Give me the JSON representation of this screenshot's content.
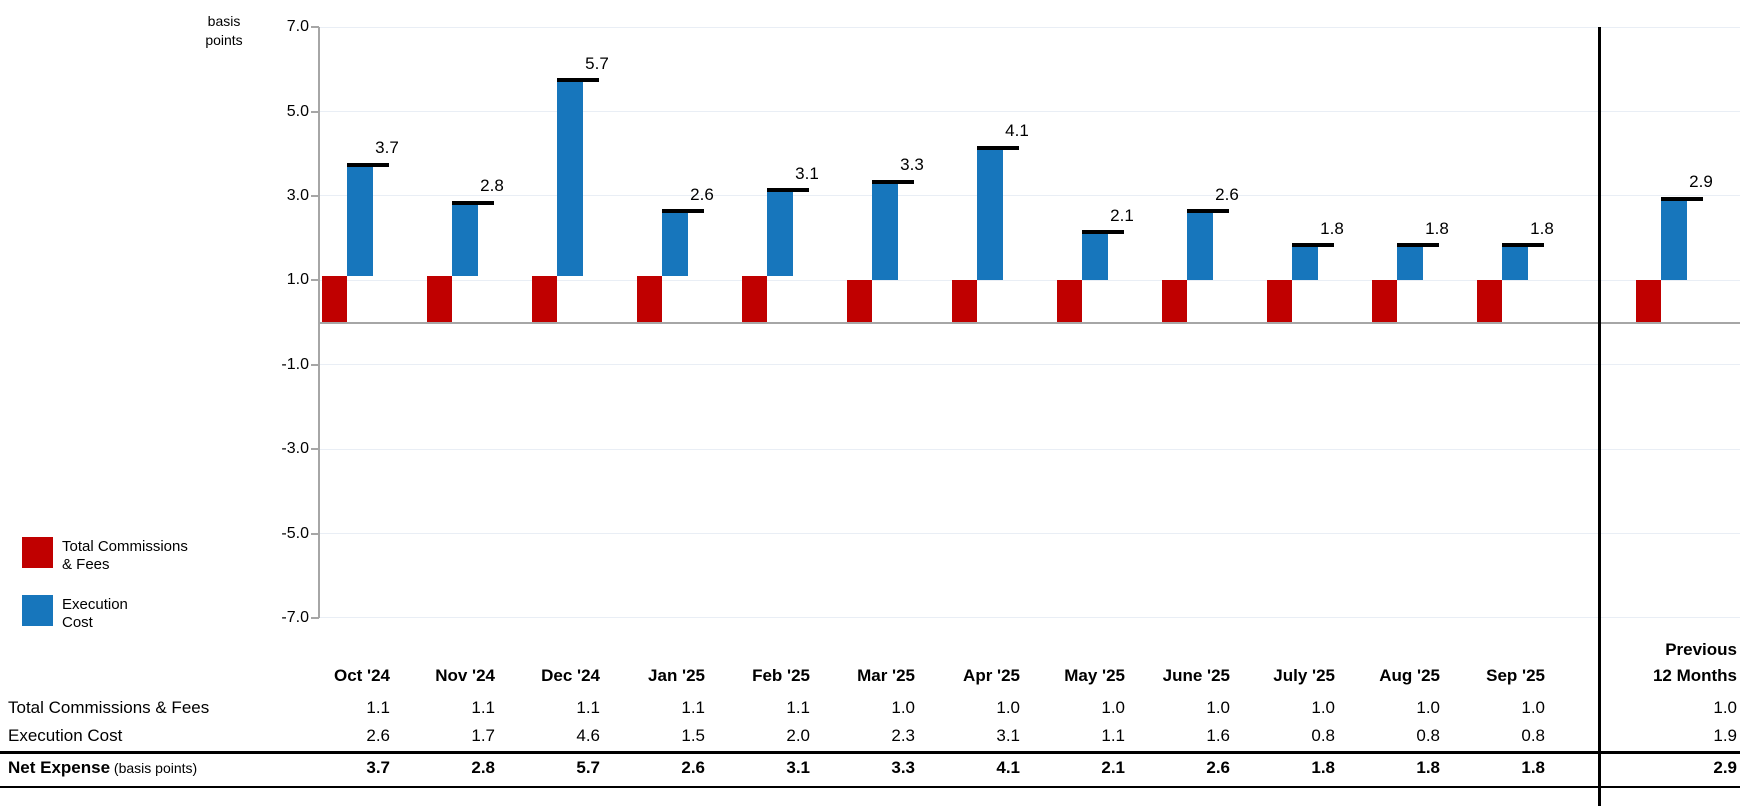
{
  "chart": {
    "axis_unit_label": [
      "basis",
      "points"
    ],
    "y_ticks": [
      "7.0",
      "5.0",
      "3.0",
      "1.0",
      "-1.0",
      "-3.0",
      "-5.0",
      "-7.0"
    ]
  },
  "chart_data": {
    "type": "bar",
    "subtype": "stacked-with-total-cap",
    "title": "",
    "xlabel": "",
    "ylabel": "basis points",
    "ylim": [
      -7.0,
      7.0
    ],
    "y_tick_step": 2.0,
    "gridlines": true,
    "legend_position": "bottom-left",
    "categories": [
      "Oct '24",
      "Nov '24",
      "Dec '24",
      "Jan '25",
      "Feb '25",
      "Mar '25",
      "Apr '25",
      "May '25",
      "June '25",
      "July '25",
      "Aug '25",
      "Sep '25",
      "Previous 12 Months"
    ],
    "series": [
      {
        "name": "Total Commissions & Fees",
        "color": "#c00000",
        "values": [
          1.1,
          1.1,
          1.1,
          1.1,
          1.1,
          1.0,
          1.0,
          1.0,
          1.0,
          1.0,
          1.0,
          1.0,
          1.0
        ]
      },
      {
        "name": "Execution Cost",
        "color": "#1776bc",
        "values": [
          2.6,
          1.7,
          4.6,
          1.5,
          2.0,
          2.3,
          3.1,
          1.1,
          1.6,
          0.8,
          0.8,
          0.8,
          1.9
        ]
      }
    ],
    "totals": [
      3.7,
      2.8,
      5.7,
      2.6,
      3.1,
      3.3,
      4.1,
      2.1,
      2.6,
      1.8,
      1.8,
      1.8,
      2.9
    ],
    "total_labels": [
      "3.7",
      "2.8",
      "5.7",
      "2.6",
      "3.1",
      "3.3",
      "4.1",
      "2.1",
      "2.6",
      "1.8",
      "1.8",
      "1.8",
      "2.9"
    ],
    "total_marker_color": "#000000"
  },
  "legend": {
    "items": [
      {
        "color": "#c00000",
        "line1": "Total Commissions",
        "line2": "& Fees"
      },
      {
        "color": "#1776bc",
        "line1": "Execution",
        "line2": "Cost"
      }
    ]
  },
  "table": {
    "month_headers": [
      "Oct '24",
      "Nov '24",
      "Dec '24",
      "Jan '25",
      "Feb '25",
      "Mar '25",
      "Apr '25",
      "May '25",
      "June '25",
      "July '25",
      "Aug '25",
      "Sep '25"
    ],
    "period_header": [
      "Previous",
      "12 Months"
    ],
    "rows": [
      {
        "label": "Total Commissions & Fees",
        "label_note": "",
        "bold": false,
        "values": [
          "1.1",
          "1.1",
          "1.1",
          "1.1",
          "1.1",
          "1.0",
          "1.0",
          "1.0",
          "1.0",
          "1.0",
          "1.0",
          "1.0"
        ],
        "period_value": "1.0"
      },
      {
        "label": "Execution Cost",
        "label_note": "",
        "bold": false,
        "values": [
          "2.6",
          "1.7",
          "4.6",
          "1.5",
          "2.0",
          "2.3",
          "3.1",
          "1.1",
          "1.6",
          "0.8",
          "0.8",
          "0.8"
        ],
        "period_value": "1.9"
      },
      {
        "label": "Net Expense",
        "label_note": "(basis points)",
        "bold": true,
        "values": [
          "3.7",
          "2.8",
          "5.7",
          "2.6",
          "3.1",
          "3.3",
          "4.1",
          "2.1",
          "2.6",
          "1.8",
          "1.8",
          "1.8"
        ],
        "period_value": "2.9"
      }
    ]
  }
}
